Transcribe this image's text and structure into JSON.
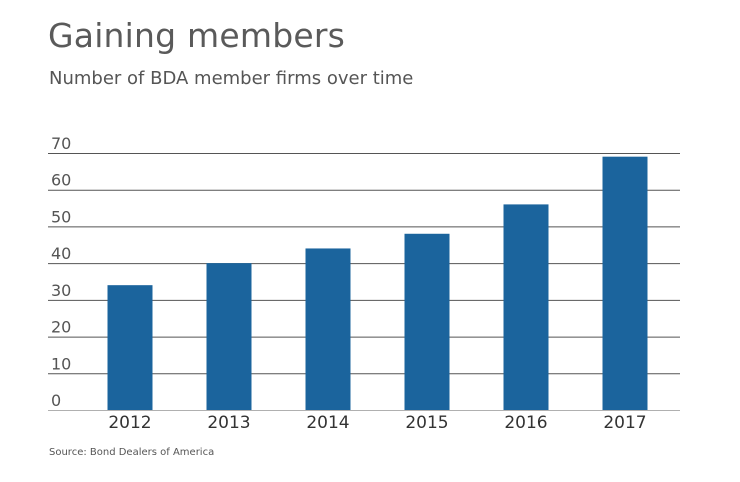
{
  "title": "Gaining members",
  "subtitle": "Number of BDA member firms over time",
  "source": "Source: Bond Dealers of America",
  "colors": {
    "bar": "#1b649d",
    "grid": "#555555",
    "axis": "#b0b0b0"
  },
  "chart_data": {
    "type": "bar",
    "categories": [
      "2012",
      "2013",
      "2014",
      "2015",
      "2016",
      "2017"
    ],
    "values": [
      34,
      40,
      44,
      48,
      56,
      69
    ],
    "ylim": [
      0,
      70
    ],
    "yticks": [
      0,
      10,
      20,
      30,
      40,
      50,
      60,
      70
    ],
    "grid": true,
    "legend": "none"
  }
}
